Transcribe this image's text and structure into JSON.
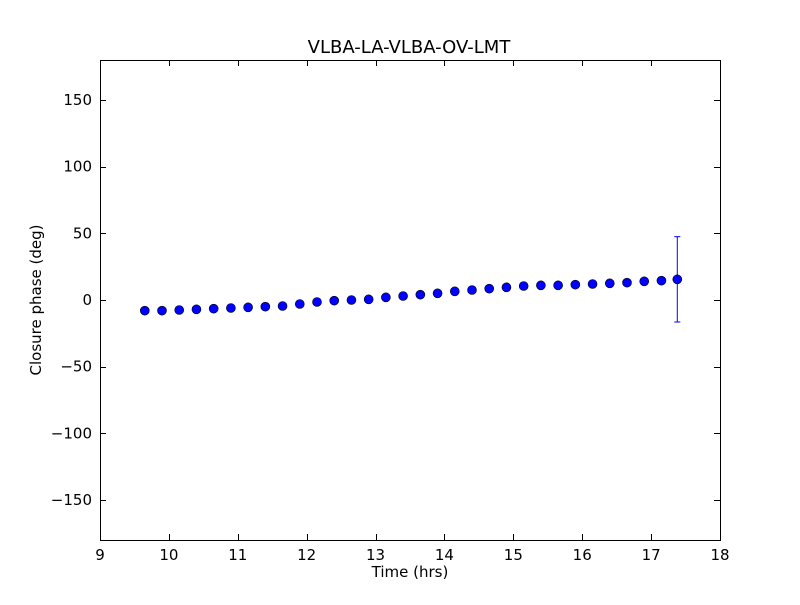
{
  "chart_data": {
    "type": "scatter",
    "title": "VLBA-LA-VLBA-OV-LMT",
    "xlabel": "Time (hrs)",
    "ylabel": "Closure phase (deg)",
    "xlim": [
      9,
      18
    ],
    "ylim": [
      -180,
      180
    ],
    "xticks": [
      9,
      10,
      11,
      12,
      13,
      14,
      15,
      16,
      17,
      18
    ],
    "xtick_labels": [
      "9",
      "10",
      "11",
      "12",
      "13",
      "14",
      "15",
      "16",
      "17",
      "18"
    ],
    "yticks": [
      -150,
      -100,
      -50,
      0,
      50,
      100,
      150
    ],
    "ytick_labels": [
      "−150",
      "−100",
      "−50",
      "0",
      "50",
      "100",
      "150"
    ],
    "grid": false,
    "marker_color": "#0000ff",
    "errorbar_color": "#0000ff",
    "series": [
      {
        "x": [
          9.65,
          9.9,
          10.15,
          10.4,
          10.65,
          10.9,
          11.15,
          11.4,
          11.65,
          11.9,
          12.15,
          12.4,
          12.65,
          12.9,
          13.15,
          13.4,
          13.65,
          13.9,
          14.15,
          14.4,
          14.65,
          14.9,
          15.15,
          15.4,
          15.65,
          15.9,
          16.15,
          16.4,
          16.65,
          16.9,
          17.15,
          17.38
        ],
        "y": [
          -8,
          -8,
          -7.5,
          -7,
          -6.5,
          -6,
          -5.5,
          -5,
          -4.5,
          -3,
          -1.5,
          -0.5,
          0,
          0.5,
          2,
          3,
          4,
          5,
          6.5,
          7.5,
          8.5,
          9.5,
          10.5,
          11,
          11,
          11.5,
          12,
          12.5,
          13,
          14,
          14.5,
          15.5
        ],
        "yerr": [
          0,
          0,
          0,
          0,
          0,
          0,
          0,
          0,
          0,
          0,
          0,
          0,
          0,
          0,
          0,
          0,
          0,
          0,
          0,
          0,
          0,
          0,
          0,
          0,
          0,
          0,
          0,
          0,
          0,
          0,
          0,
          32
        ]
      }
    ]
  }
}
